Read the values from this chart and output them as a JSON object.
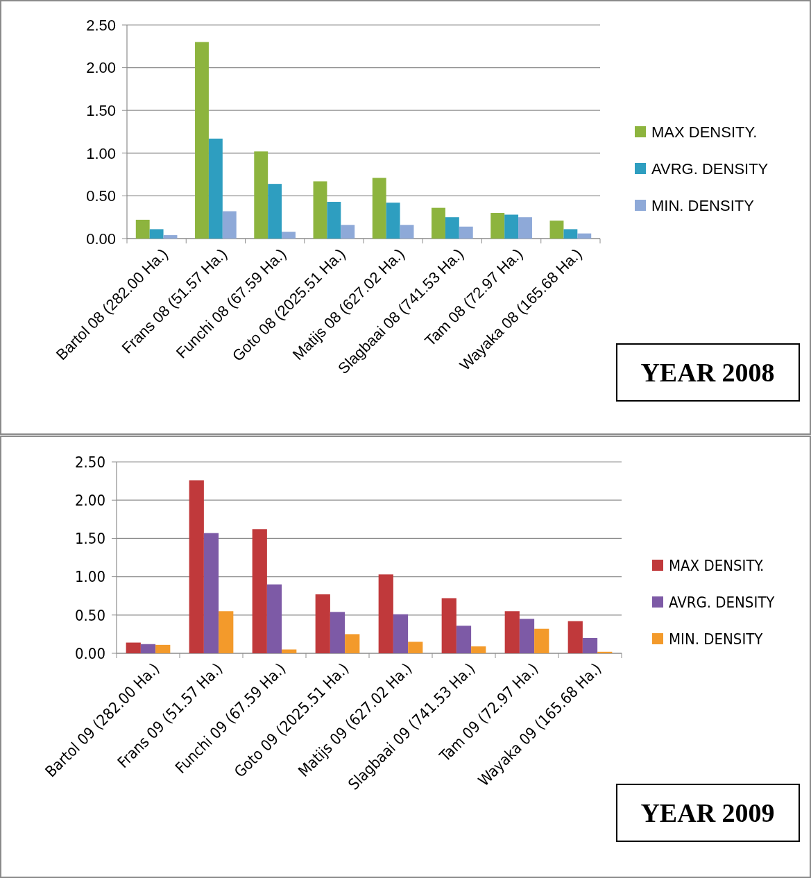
{
  "chart_data": [
    {
      "type": "bar",
      "categories": [
        "Bartol 08 (282.00 Ha.)",
        "Frans 08 (51.57 Ha.)",
        "Funchi 08 (67.59 Ha.)",
        "Goto 08  (2025.51 Ha.)",
        "Matijs 08 (627.02 Ha.)",
        "Slagbaai 08 (741.53 Ha.)",
        "Tam 08 (72.97 Ha.)",
        "Wayaka 08 (165.68 Ha.)"
      ],
      "series": [
        {
          "name": "MAX DENSITY.",
          "color": "#8db43e",
          "values": [
            0.22,
            2.3,
            1.02,
            0.67,
            0.71,
            0.36,
            0.3,
            0.21
          ]
        },
        {
          "name": "AVRG. DENSITY",
          "color": "#2e9ec0",
          "values": [
            0.11,
            1.17,
            0.64,
            0.43,
            0.42,
            0.25,
            0.28,
            0.11
          ]
        },
        {
          "name": "MIN. DENSITY",
          "color": "#8ea9d8",
          "values": [
            0.04,
            0.32,
            0.08,
            0.16,
            0.16,
            0.14,
            0.25,
            0.06
          ]
        }
      ],
      "ylim": [
        0,
        2.5
      ],
      "yticks": [
        {
          "value": 0,
          "label": "0.00"
        },
        {
          "value": 0.5,
          "label": "0.50"
        },
        {
          "value": 1,
          "label": "1.00"
        },
        {
          "value": 1.5,
          "label": "1.50"
        },
        {
          "value": 2,
          "label": "2.00"
        },
        {
          "value": 2.5,
          "label": "2.50"
        }
      ],
      "grid": "y",
      "legend": "right",
      "annotations": [
        "YEAR 2008"
      ]
    },
    {
      "type": "bar",
      "categories": [
        "Bartol 09 (282.00 Ha.)",
        "Frans 09 (51.57 Ha.)",
        "Funchi 09 (67.59 Ha.)",
        "Goto 09 (2025.51 Ha.)",
        "Matijs 09 (627.02 Ha.)",
        "Slagbaai 09 (741.53 Ha.)",
        "Tam 09 (72.97 Ha.)",
        "Wayaka 09 (165.68 Ha.)"
      ],
      "series": [
        {
          "name": "MAX DENSITY.",
          "color": "#c0393b",
          "values": [
            0.14,
            2.26,
            1.62,
            0.77,
            1.03,
            0.72,
            0.55,
            0.42
          ]
        },
        {
          "name": "AVRG. DENSITY",
          "color": "#7d5aa6",
          "values": [
            0.12,
            1.57,
            0.9,
            0.54,
            0.51,
            0.36,
            0.45,
            0.2
          ]
        },
        {
          "name": "MIN. DENSITY",
          "color": "#f39a2b",
          "values": [
            0.11,
            0.55,
            0.05,
            0.25,
            0.15,
            0.09,
            0.32,
            0.02
          ]
        }
      ],
      "ylim": [
        0,
        2.5
      ],
      "yticks": [
        {
          "value": 0,
          "label": "0.00"
        },
        {
          "value": 0.5,
          "label": "0.50"
        },
        {
          "value": 1,
          "label": "1.00"
        },
        {
          "value": 1.5,
          "label": "1.50"
        },
        {
          "value": 2,
          "label": "2.00"
        },
        {
          "value": 2.5,
          "label": "2.50"
        }
      ],
      "grid": "y",
      "legend": "right",
      "annotations": [
        "YEAR 2009"
      ]
    }
  ]
}
